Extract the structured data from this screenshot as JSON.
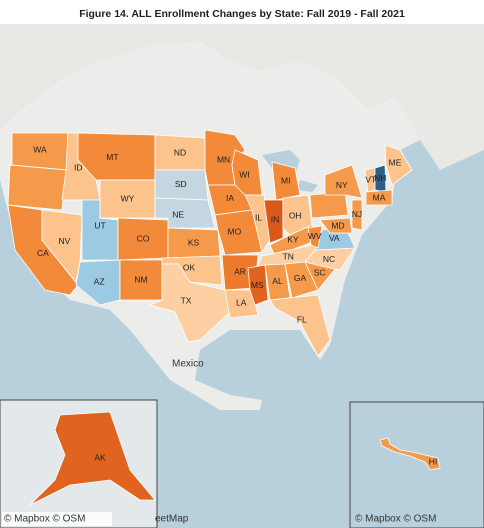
{
  "title": "Figure 14. ALL Enrollment Changes by State: Fall 2019 - Fall 2021",
  "place_label": "Mexico",
  "attributions": [
    "© Mapbox © OSM",
    "eetMap",
    "© Mapbox © OSM",
    "© Mapbox © OSM"
  ],
  "states": [
    {
      "label": "WA",
      "color": "#f59a4a"
    },
    {
      "label": null,
      "color": "#f59a4a"
    },
    {
      "label": "CA",
      "color": "#f28a3a"
    },
    {
      "label": "NV",
      "color": "#fcc38c"
    },
    {
      "label": "ID",
      "color": "#fcc38c"
    },
    {
      "label": "MT",
      "color": "#f28a3a"
    },
    {
      "label": "WY",
      "color": "#fcc38c"
    },
    {
      "label": "UT",
      "color": "#9ccae2"
    },
    {
      "label": "AZ",
      "color": "#9ccae2"
    },
    {
      "label": "CO",
      "color": "#f28a3a"
    },
    {
      "label": "NM",
      "color": "#f28a3a"
    },
    {
      "label": "ND",
      "color": "#fcc38c"
    },
    {
      "label": "SD",
      "color": "#c4d6df"
    },
    {
      "label": "NE",
      "color": "#c4d6df"
    },
    {
      "label": "KS",
      "color": "#f59a4a"
    },
    {
      "label": "OK",
      "color": "#fcc38c"
    },
    {
      "label": "TX",
      "color": "#fdcfa2"
    },
    {
      "label": "MN",
      "color": "#f28a3a"
    },
    {
      "label": "IA",
      "color": "#f28a3a"
    },
    {
      "label": "MO",
      "color": "#f28a3a"
    },
    {
      "label": "AR",
      "color": "#ee7a2c"
    },
    {
      "label": "LA",
      "color": "#fcc38c"
    },
    {
      "label": "WI",
      "color": "#f28a3a"
    },
    {
      "label": "IL",
      "color": "#fcc38c"
    },
    {
      "label": "MI",
      "color": "#f28a3a"
    },
    {
      "label": "IN",
      "color": "#d9591b"
    },
    {
      "label": "OH",
      "color": "#fcc38c"
    },
    {
      "label": "KY",
      "color": "#f59a4a"
    },
    {
      "label": "TN",
      "color": "#fdcfa2"
    },
    {
      "label": "MS",
      "color": "#e0641f"
    },
    {
      "label": "AL",
      "color": "#f59a4a"
    },
    {
      "label": "GA",
      "color": "#f59a4a"
    },
    {
      "label": "FL",
      "color": "#fcc38c"
    },
    {
      "label": "SC",
      "color": "#f59a4a"
    },
    {
      "label": "NC",
      "color": "#fdcfa2"
    },
    {
      "label": "VA",
      "color": "#9ccae2"
    },
    {
      "label": "WV",
      "color": "#f28a3a"
    },
    {
      "label": null,
      "color": "#f59a4a"
    },
    {
      "label": "NY",
      "color": "#f59a4a"
    },
    {
      "label": "MD",
      "color": "#f59a4a"
    },
    {
      "label": "NJ",
      "color": "#f59a4a"
    },
    {
      "label": "VT",
      "color": "#fcc38c"
    },
    {
      "label": "NH",
      "color": "#2c5f86"
    },
    {
      "label": "ME",
      "color": "#fcc38c"
    },
    {
      "label": "MA",
      "color": "#f59a4a"
    },
    {
      "label": "AK",
      "color": "#e0641f"
    },
    {
      "label": "HI",
      "color": "#f59a4a"
    }
  ]
}
